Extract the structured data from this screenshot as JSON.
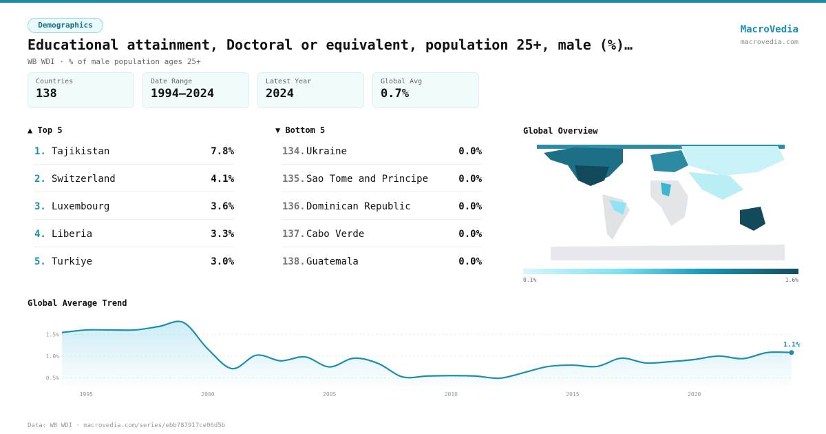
{
  "header": {
    "tag": "Demographics",
    "title": "Educational attainment, Doctoral or equivalent, population 25+, male (%)…",
    "subtitle": "WB WDI · % of male population ages 25+",
    "brand": "MacroVedia",
    "site": "macrovedia.com"
  },
  "stats": [
    {
      "label": "Countries",
      "value": "138"
    },
    {
      "label": "Date Range",
      "value": "1994–2024"
    },
    {
      "label": "Latest Year",
      "value": "2024"
    },
    {
      "label": "Global Avg",
      "value": "0.7%"
    }
  ],
  "top": {
    "title": "▲ Top 5",
    "rows": [
      {
        "rank": "1.",
        "name": "Tajikistan",
        "value": "7.8%"
      },
      {
        "rank": "2.",
        "name": "Switzerland",
        "value": "4.1%"
      },
      {
        "rank": "3.",
        "name": "Luxembourg",
        "value": "3.6%"
      },
      {
        "rank": "4.",
        "name": "Liberia",
        "value": "3.3%"
      },
      {
        "rank": "5.",
        "name": "Turkiye",
        "value": "3.0%"
      }
    ]
  },
  "bottom": {
    "title": "▼ Bottom 5",
    "rows": [
      {
        "rank": "134.",
        "name": "Ukraine",
        "value": "0.0%"
      },
      {
        "rank": "135.",
        "name": "Sao Tome and Principe",
        "value": "0.0%"
      },
      {
        "rank": "136.",
        "name": "Dominican Republic",
        "value": "0.0%"
      },
      {
        "rank": "137.",
        "name": "Cabo Verde",
        "value": "0.0%"
      },
      {
        "rank": "138.",
        "name": "Guatemala",
        "value": "0.0%"
      }
    ]
  },
  "map": {
    "title": "Global Overview",
    "scale_min": "0.1%",
    "scale_max": "1.6%"
  },
  "chart_data": {
    "type": "line",
    "title": "Global Average Trend",
    "color": "#1a8fb0",
    "x": [
      1994,
      1995,
      1996,
      1997,
      1998,
      1999,
      2000,
      2001,
      2002,
      2003,
      2004,
      2005,
      2006,
      2007,
      2008,
      2009,
      2010,
      2011,
      2012,
      2013,
      2014,
      2015,
      2016,
      2017,
      2018,
      2019,
      2020,
      2021,
      2022,
      2023,
      2024
    ],
    "values": [
      1.54,
      1.6,
      1.6,
      1.6,
      1.68,
      1.77,
      1.16,
      0.71,
      1.02,
      0.89,
      0.98,
      0.75,
      0.95,
      0.83,
      0.52,
      0.54,
      0.55,
      0.54,
      0.49,
      0.62,
      0.76,
      0.79,
      0.76,
      0.95,
      0.84,
      0.87,
      0.92,
      1.0,
      0.94,
      1.08,
      1.08
    ],
    "value_labels": [
      null,
      null,
      null,
      null,
      null,
      null,
      null,
      null,
      null,
      null,
      null,
      null,
      null,
      null,
      null,
      null,
      null,
      null,
      null,
      null,
      null,
      null,
      null,
      null,
      null,
      null,
      null,
      null,
      null,
      null,
      "1.1%"
    ],
    "xlim": [
      1994,
      2024
    ],
    "xticks": [
      1995,
      2000,
      2005,
      2010,
      2015,
      2020
    ],
    "ylim": [
      0.3,
      1.9
    ],
    "yticks": [
      {
        "value": 0.5,
        "label": "0.5%"
      },
      {
        "value": 1.0,
        "label": "1.0%"
      },
      {
        "value": 1.5,
        "label": "1.5%"
      }
    ],
    "grid": true
  },
  "footer": "Data: WB WDI · macrovedia.com/series/ebb787917ce06d5b"
}
